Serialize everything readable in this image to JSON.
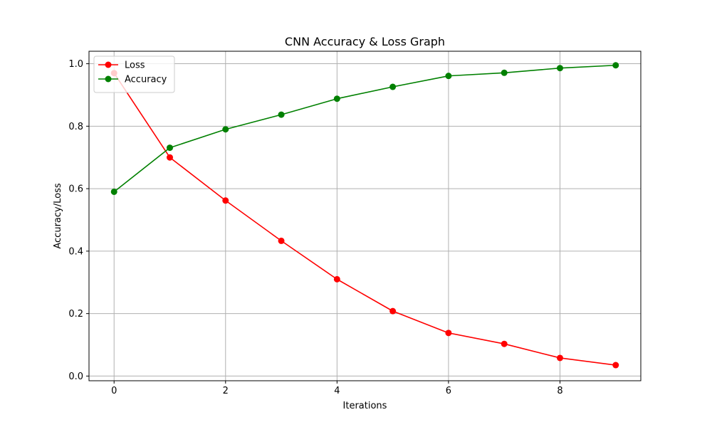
{
  "chart_data": {
    "type": "line",
    "title": "CNN Accuracy & Loss Graph",
    "xlabel": "Iterations",
    "ylabel": "Accuracy/Loss",
    "xlim": [
      -0.45,
      9.45
    ],
    "ylim": [
      -0.015,
      1.04
    ],
    "xticks": [
      0,
      2,
      4,
      6,
      8
    ],
    "yticks": [
      0.0,
      0.2,
      0.4,
      0.6,
      0.8,
      1.0
    ],
    "grid": true,
    "legend_position": "upper left",
    "x": [
      0,
      1,
      2,
      3,
      4,
      5,
      6,
      7,
      8,
      9
    ],
    "series": [
      {
        "name": "Loss",
        "color": "#ff0000",
        "marker": "circle",
        "values": [
          0.97,
          0.7,
          0.562,
          0.433,
          0.31,
          0.208,
          0.138,
          0.103,
          0.058,
          0.035
        ]
      },
      {
        "name": "Accuracy",
        "color": "#008000",
        "marker": "circle",
        "values": [
          0.59,
          0.731,
          0.79,
          0.837,
          0.888,
          0.926,
          0.961,
          0.971,
          0.986,
          0.995
        ]
      }
    ]
  }
}
